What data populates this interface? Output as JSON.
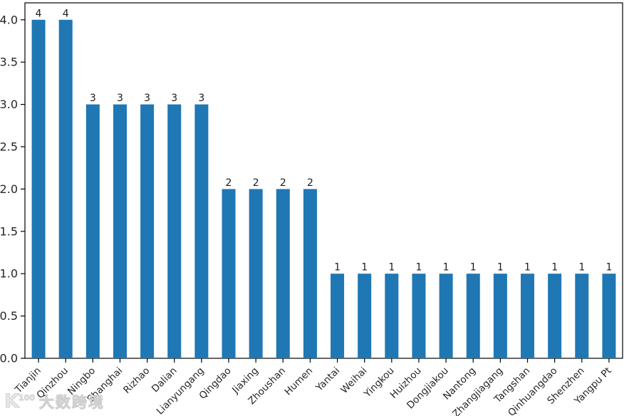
{
  "figure": {
    "background": "#ffffff"
  },
  "watermark": {
    "logo_main": "K",
    "logo_sup": "100",
    "text": "大数跨境",
    "color": "#d4d4d4"
  },
  "chart_data": {
    "type": "bar",
    "title": "",
    "xlabel": "",
    "ylabel": "",
    "categories": [
      "Tianjin",
      "Qinzhou",
      "Ningbo",
      "Shanghai",
      "Rizhao",
      "Dalian",
      "Lianyungang",
      "Qingdao",
      "Jiaxing",
      "Zhoushan",
      "Humen",
      "Yantai",
      "Weihai",
      "Yingkou",
      "Huizhou",
      "Dongjiakou",
      "Nantong",
      "Zhangjiagang",
      "Tangshan",
      "Qinhuangdao",
      "Shenzhen",
      "Yangpu Pt"
    ],
    "values": [
      4,
      4,
      3,
      3,
      3,
      3,
      3,
      2,
      2,
      2,
      2,
      1,
      1,
      1,
      1,
      1,
      1,
      1,
      1,
      1,
      1,
      1
    ],
    "show_bar_value_labels": true,
    "ylim": [
      0,
      4.2
    ],
    "yticks": [
      0,
      0.5,
      1,
      1.5,
      2,
      2.5,
      3,
      3.5,
      4
    ],
    "ytick_format_decimals": 1,
    "x_tick_rotation": 45,
    "grid": false,
    "legend": null,
    "bar_color": "#1f77b4",
    "axis_color": "#000000",
    "tick_label_color": "#262626",
    "value_label_color": "#1a1a1a"
  }
}
